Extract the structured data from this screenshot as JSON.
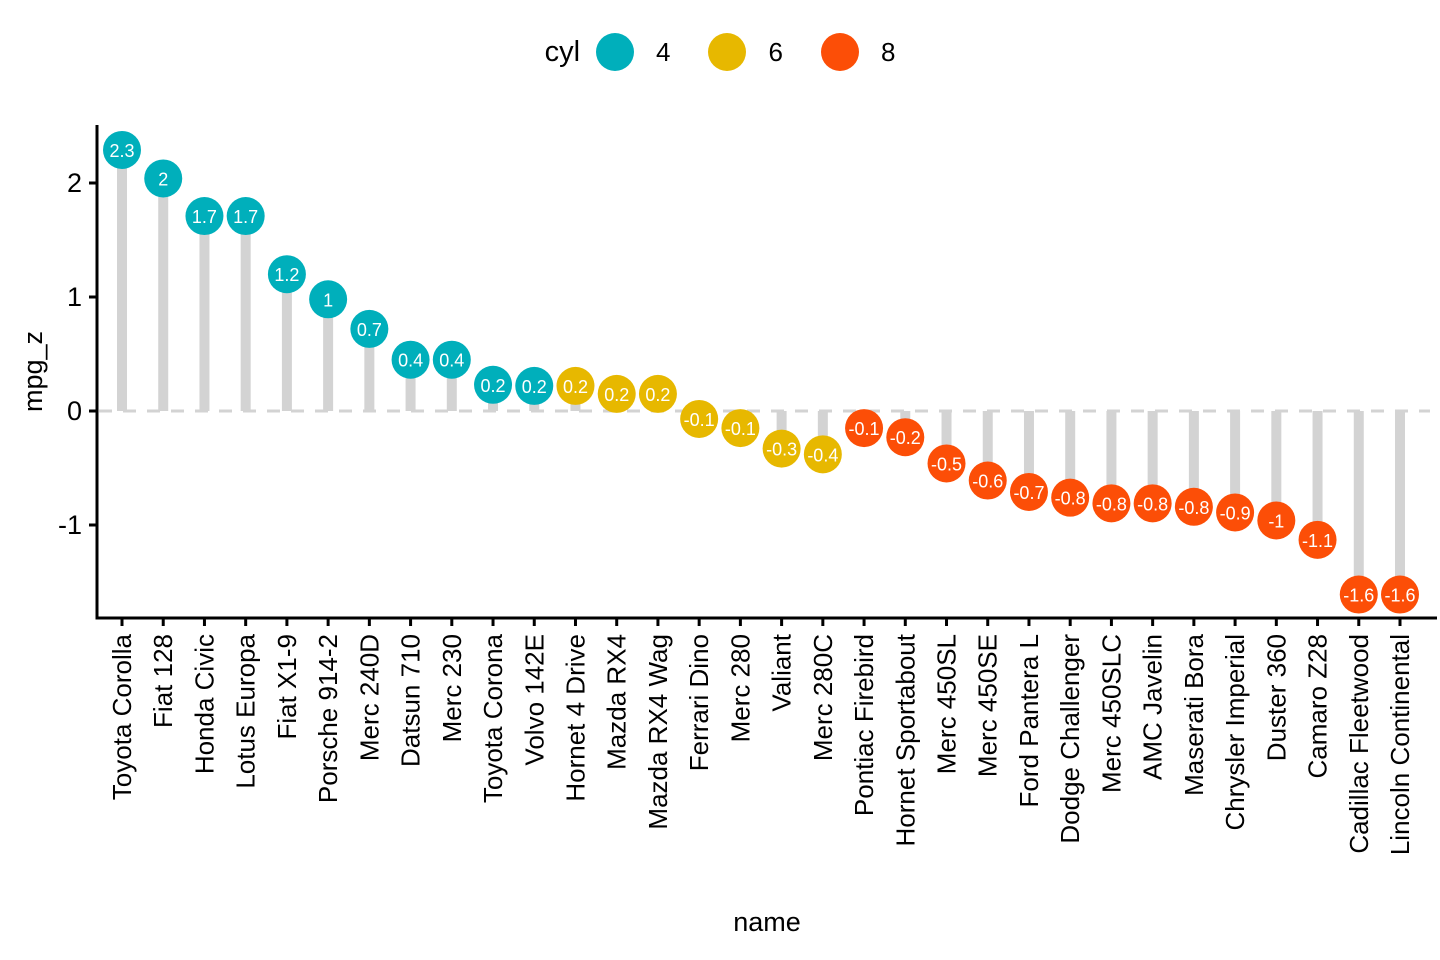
{
  "legend": {
    "title": "cyl",
    "items": [
      {
        "label": "4",
        "color": "#00AFBB"
      },
      {
        "label": "6",
        "color": "#E7B800"
      },
      {
        "label": "8",
        "color": "#FC4E07"
      }
    ]
  },
  "chart_data": {
    "type": "lollipop",
    "title": "",
    "xlabel": "name",
    "ylabel": "mpg_z",
    "yticks": [
      2,
      1,
      0,
      -1
    ],
    "ylim": [
      -1.85,
      2.55
    ],
    "grid": false,
    "legend_position": "top",
    "zero_line": {
      "value": 0,
      "style": "dashed",
      "color": "#d3d3d3"
    },
    "stem_color": "#d3d3d3",
    "axis_color": "#000000",
    "value_label_color": "#ffffff",
    "group_colors": {
      "4": "#00AFBB",
      "6": "#E7B800",
      "8": "#FC4E07"
    },
    "points": [
      {
        "name": "Toyota Corolla",
        "cyl": "4",
        "value": 2.29,
        "label": "2.3"
      },
      {
        "name": "Fiat 128",
        "cyl": "4",
        "value": 2.04,
        "label": "2"
      },
      {
        "name": "Honda Civic",
        "cyl": "4",
        "value": 1.71,
        "label": "1.7"
      },
      {
        "name": "Lotus Europa",
        "cyl": "4",
        "value": 1.71,
        "label": "1.7"
      },
      {
        "name": "Fiat X1-9",
        "cyl": "4",
        "value": 1.2,
        "label": "1.2"
      },
      {
        "name": "Porsche 914-2",
        "cyl": "4",
        "value": 0.98,
        "label": "1"
      },
      {
        "name": "Merc 240D",
        "cyl": "4",
        "value": 0.72,
        "label": "0.7"
      },
      {
        "name": "Datsun 710",
        "cyl": "4",
        "value": 0.45,
        "label": "0.4"
      },
      {
        "name": "Merc 230",
        "cyl": "4",
        "value": 0.45,
        "label": "0.4"
      },
      {
        "name": "Toyota Corona",
        "cyl": "4",
        "value": 0.23,
        "label": "0.2"
      },
      {
        "name": "Volvo 142E",
        "cyl": "4",
        "value": 0.22,
        "label": "0.2"
      },
      {
        "name": "Hornet 4 Drive",
        "cyl": "6",
        "value": 0.22,
        "label": "0.2"
      },
      {
        "name": "Mazda RX4",
        "cyl": "6",
        "value": 0.15,
        "label": "0.2"
      },
      {
        "name": "Mazda RX4 Wag",
        "cyl": "6",
        "value": 0.15,
        "label": "0.2"
      },
      {
        "name": "Ferrari Dino",
        "cyl": "6",
        "value": -0.07,
        "label": "-0.1"
      },
      {
        "name": "Merc 280",
        "cyl": "6",
        "value": -0.15,
        "label": "-0.1"
      },
      {
        "name": "Valiant",
        "cyl": "6",
        "value": -0.33,
        "label": "-0.3"
      },
      {
        "name": "Merc 280C",
        "cyl": "6",
        "value": -0.38,
        "label": "-0.4"
      },
      {
        "name": "Pontiac Firebird",
        "cyl": "8",
        "value": -0.15,
        "label": "-0.1"
      },
      {
        "name": "Hornet Sportabout",
        "cyl": "8",
        "value": -0.23,
        "label": "-0.2"
      },
      {
        "name": "Merc 450SL",
        "cyl": "8",
        "value": -0.46,
        "label": "-0.5"
      },
      {
        "name": "Merc 450SE",
        "cyl": "8",
        "value": -0.61,
        "label": "-0.6"
      },
      {
        "name": "Ford Pantera L",
        "cyl": "8",
        "value": -0.71,
        "label": "-0.7"
      },
      {
        "name": "Dodge Challenger",
        "cyl": "8",
        "value": -0.76,
        "label": "-0.8"
      },
      {
        "name": "Merc 450SLC",
        "cyl": "8",
        "value": -0.81,
        "label": "-0.8"
      },
      {
        "name": "AMC Javelin",
        "cyl": "8",
        "value": -0.81,
        "label": "-0.8"
      },
      {
        "name": "Maserati Bora",
        "cyl": "8",
        "value": -0.84,
        "label": "-0.8"
      },
      {
        "name": "Chrysler Imperial",
        "cyl": "8",
        "value": -0.89,
        "label": "-0.9"
      },
      {
        "name": "Duster 360",
        "cyl": "8",
        "value": -0.96,
        "label": "-1"
      },
      {
        "name": "Camaro Z28",
        "cyl": "8",
        "value": -1.13,
        "label": "-1.1"
      },
      {
        "name": "Cadillac Fleetwood",
        "cyl": "8",
        "value": -1.61,
        "label": "-1.6"
      },
      {
        "name": "Lincoln Continental",
        "cyl": "8",
        "value": -1.61,
        "label": "-1.6"
      }
    ]
  }
}
